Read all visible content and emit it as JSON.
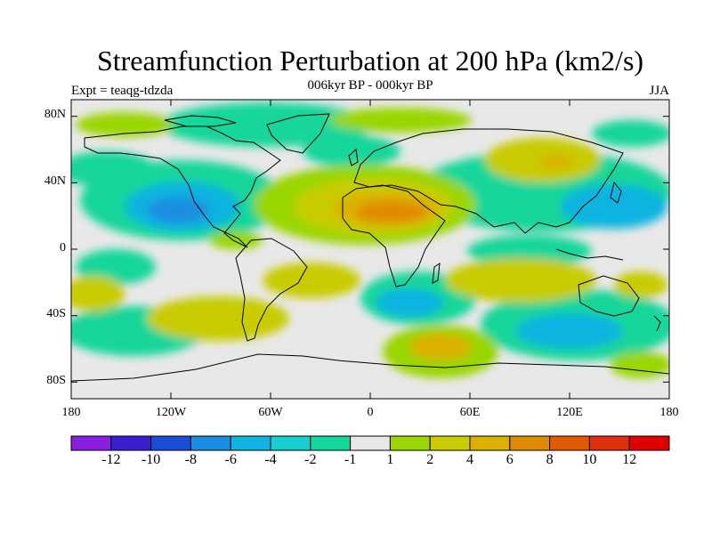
{
  "title": "Streamfunction Perturbation at 200 hPa (km2/s)",
  "subtitle": "006kyr BP - 000kyr BP",
  "experiment": "Expt = teaqg-tdzda",
  "season": "JJA",
  "axes": {
    "lat_labels": [
      "80N",
      "40N",
      "0",
      "40S",
      "80S"
    ],
    "lon_labels": [
      "180",
      "120W",
      "60W",
      "0",
      "60E",
      "120E",
      "180"
    ]
  },
  "colorbar": {
    "labels": [
      "-12",
      "-10",
      "-8",
      "-6",
      "-4",
      "-2",
      "-1",
      "1",
      "2",
      "4",
      "6",
      "8",
      "10",
      "12"
    ],
    "colors": [
      "#8a1ee0",
      "#3a1ed0",
      "#1a4ed6",
      "#1a8ee0",
      "#10b4e0",
      "#16cfd2",
      "#14d69a",
      "#e8e8e8",
      "#9ad600",
      "#c8cc00",
      "#dcb000",
      "#e08a00",
      "#e05a00",
      "#e03010",
      "#e00000"
    ]
  }
}
